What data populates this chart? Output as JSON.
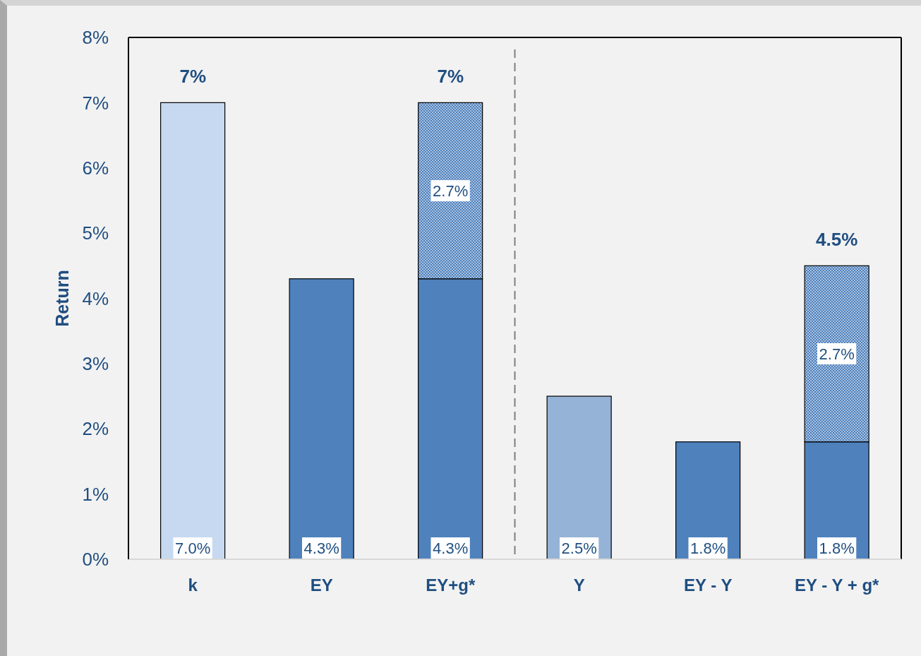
{
  "chart_data": {
    "type": "bar",
    "stacked": true,
    "ylabel": "Return",
    "categories": [
      "k",
      "EY",
      "EY+g*",
      "Y",
      "EY - Y",
      "EY - Y + g*"
    ],
    "series": [
      {
        "colors": [
          "#c6d9f1",
          "#4f81bd",
          "#4f81bd",
          "#95b3d7",
          "#4f81bd",
          "#4f81bd"
        ],
        "values": [
          7.0,
          4.3,
          4.3,
          2.5,
          1.8,
          1.8
        ],
        "value_labels": [
          "7.0%",
          "4.3%",
          "4.3%",
          "2.5%",
          "1.8%",
          "1.8%"
        ]
      },
      {
        "color": "#4f81bd",
        "values": [
          null,
          null,
          2.7,
          null,
          null,
          2.7
        ],
        "value_labels": [
          null,
          null,
          "2.7%",
          null,
          null,
          "2.7%"
        ]
      }
    ],
    "totals": [
      "7%",
      null,
      "7%",
      null,
      null,
      "4.5%"
    ],
    "ylim": [
      0,
      8
    ],
    "yticks": [
      {
        "value": 0,
        "label": "0%"
      },
      {
        "value": 1,
        "label": "1%"
      },
      {
        "value": 2,
        "label": "2%"
      },
      {
        "value": 3,
        "label": "3%"
      },
      {
        "value": 4,
        "label": "4%"
      },
      {
        "value": 5,
        "label": "5%"
      },
      {
        "value": 6,
        "label": "6%"
      },
      {
        "value": 7,
        "label": "7%"
      },
      {
        "value": 8,
        "label": "8%"
      }
    ]
  }
}
